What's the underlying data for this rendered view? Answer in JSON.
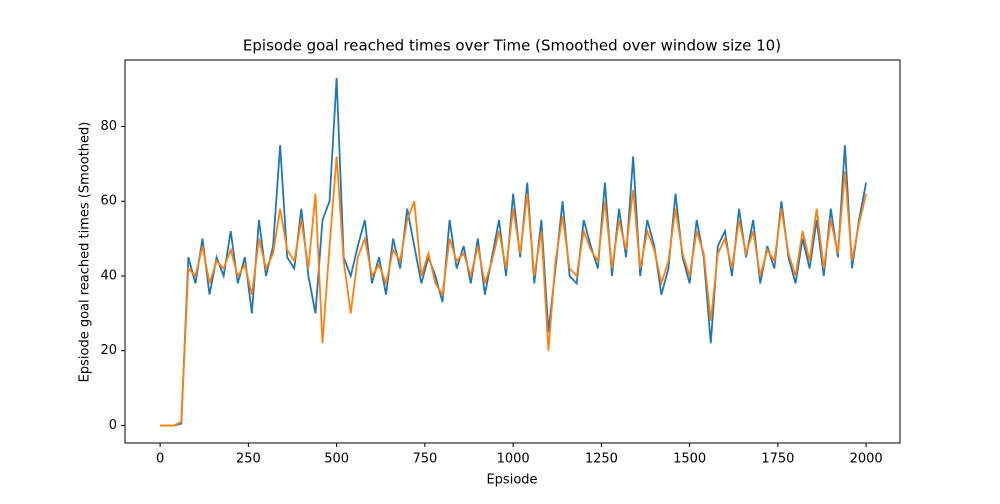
{
  "chart_data": {
    "type": "line",
    "title": "Episode goal reached times over Time (Smoothed over window size 10)",
    "xlabel": "Epsiode",
    "ylabel": "Epsiode goal reached times (Smoothed)",
    "x": [
      0,
      20,
      40,
      60,
      80,
      100,
      120,
      140,
      160,
      180,
      200,
      220,
      240,
      260,
      280,
      300,
      320,
      340,
      360,
      380,
      400,
      420,
      440,
      460,
      480,
      500,
      520,
      540,
      560,
      580,
      600,
      620,
      640,
      660,
      680,
      700,
      720,
      740,
      760,
      780,
      800,
      820,
      840,
      860,
      880,
      900,
      920,
      940,
      960,
      980,
      1000,
      1020,
      1040,
      1060,
      1080,
      1100,
      1120,
      1140,
      1160,
      1180,
      1200,
      1220,
      1240,
      1260,
      1280,
      1300,
      1320,
      1340,
      1360,
      1380,
      1400,
      1420,
      1440,
      1460,
      1480,
      1500,
      1520,
      1540,
      1560,
      1580,
      1600,
      1620,
      1640,
      1660,
      1680,
      1700,
      1720,
      1740,
      1760,
      1780,
      1800,
      1820,
      1840,
      1860,
      1880,
      1900,
      1920,
      1940,
      1960,
      1980,
      2000
    ],
    "series": [
      {
        "color": "#1f77b4",
        "values": [
          0,
          0,
          0,
          0.5,
          45,
          38,
          50,
          35,
          45,
          40,
          52,
          38,
          45,
          30,
          55,
          40,
          48,
          75,
          45,
          42,
          58,
          40,
          30,
          55,
          60,
          93,
          45,
          40,
          48,
          55,
          38,
          45,
          35,
          50,
          42,
          58,
          48,
          38,
          45,
          40,
          33,
          55,
          42,
          48,
          38,
          50,
          35,
          45,
          55,
          40,
          62,
          45,
          65,
          38,
          55,
          25,
          42,
          60,
          40,
          38,
          55,
          48,
          42,
          65,
          40,
          58,
          45,
          72,
          40,
          55,
          48,
          35,
          42,
          62,
          45,
          38,
          55,
          45,
          22,
          48,
          52,
          40,
          58,
          45,
          55,
          38,
          48,
          42,
          60,
          45,
          38,
          50,
          42,
          55,
          40,
          58,
          45,
          75,
          42,
          55,
          65
        ]
      },
      {
        "color": "#ff7f0e",
        "values": [
          0,
          0,
          0,
          1,
          42,
          40,
          48,
          38,
          44,
          42,
          47,
          40,
          43,
          35,
          50,
          42,
          46,
          58,
          47,
          44,
          55,
          42,
          62,
          22,
          48,
          72,
          44,
          30,
          45,
          50,
          40,
          43,
          38,
          47,
          44,
          55,
          60,
          40,
          46,
          38,
          35,
          50,
          44,
          46,
          40,
          48,
          38,
          44,
          52,
          42,
          58,
          46,
          62,
          40,
          52,
          20,
          44,
          56,
          42,
          40,
          52,
          47,
          44,
          60,
          42,
          55,
          47,
          63,
          42,
          52,
          47,
          38,
          44,
          58,
          46,
          40,
          52,
          46,
          28,
          46,
          50,
          42,
          55,
          46,
          52,
          40,
          47,
          44,
          58,
          46,
          40,
          52,
          44,
          58,
          42,
          55,
          46,
          68,
          44,
          54,
          62
        ]
      }
    ],
    "xlim": [
      -99.5,
      2096
    ],
    "ylim": [
      -4.7,
      97.8
    ],
    "xticks": [
      0,
      250,
      500,
      750,
      1000,
      1250,
      1500,
      1750,
      2000
    ],
    "yticks": [
      0,
      20,
      40,
      60,
      80
    ]
  }
}
